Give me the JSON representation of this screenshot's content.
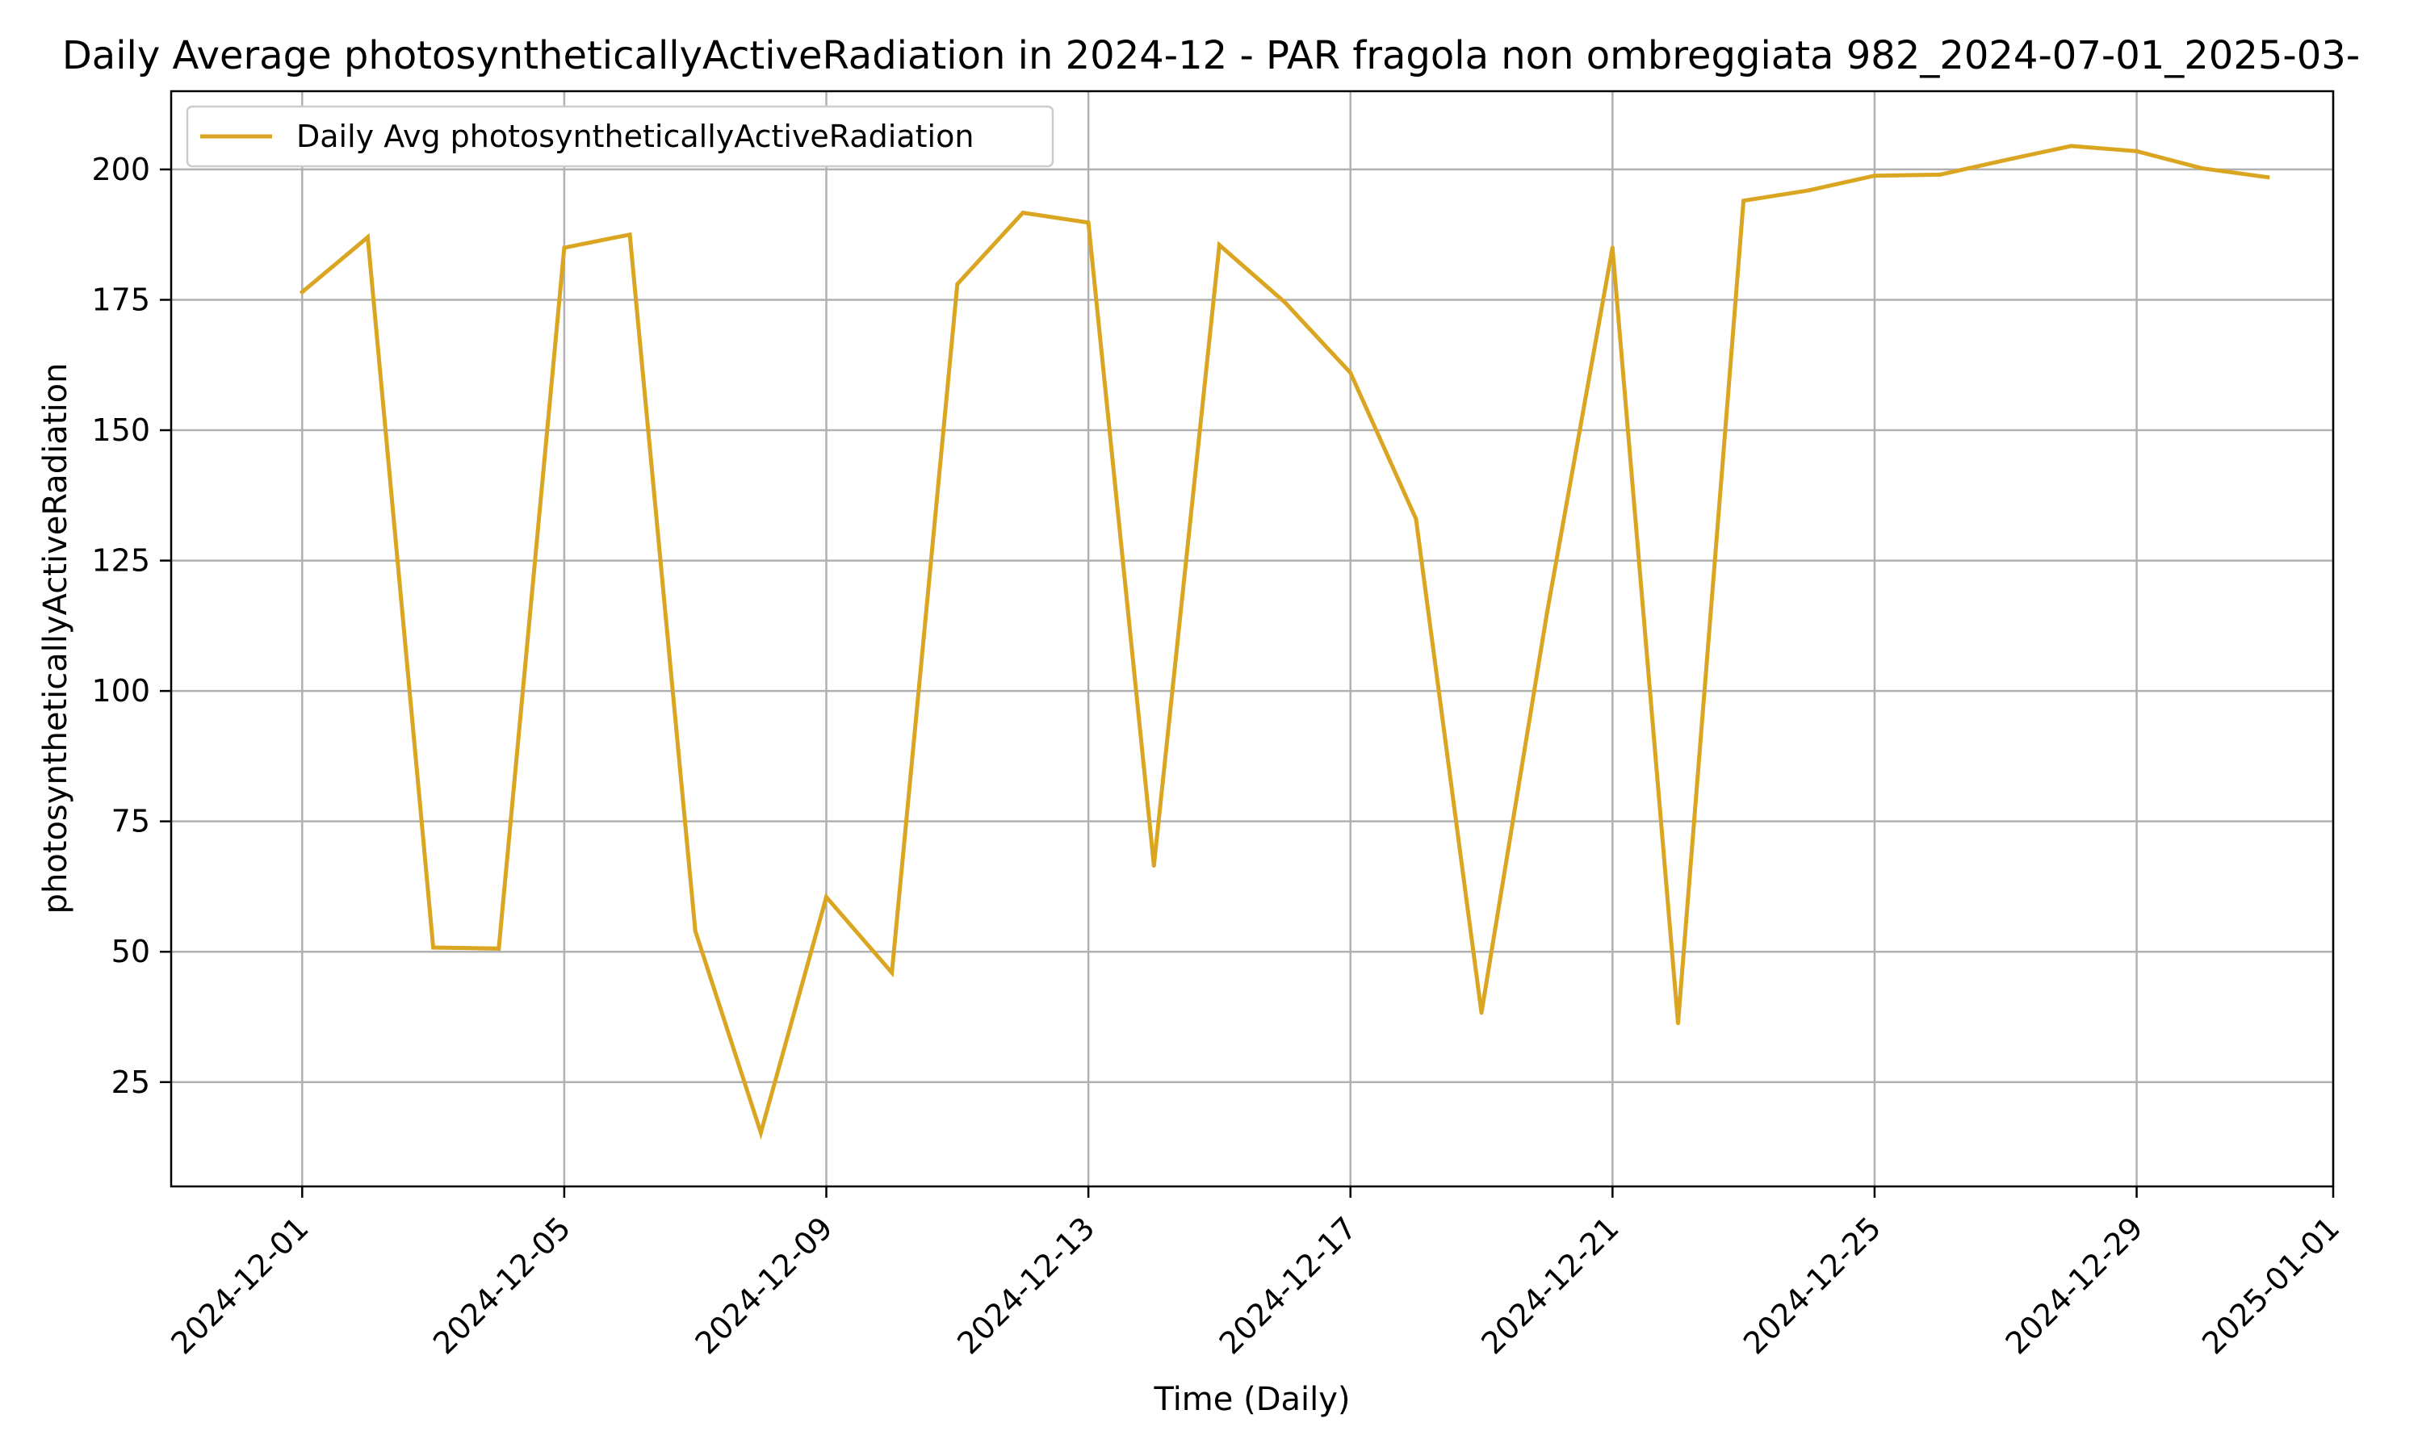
{
  "chart_data": {
    "type": "line",
    "title": "Daily Average photosyntheticallyActiveRadiation in 2024-12 - PAR fragola non ombreggiata 982_2024-07-01_2025-03-",
    "xlabel": "Time (Daily)",
    "ylabel": "photosyntheticallyActiveRadiation",
    "x_range": [
      "2024-11-29",
      "2025-01-01"
    ],
    "ylim": [
      5,
      215
    ],
    "grid": true,
    "legend": {
      "placement": "top-left"
    },
    "x_ticks": [
      "2024-12-01",
      "2024-12-05",
      "2024-12-09",
      "2024-12-13",
      "2024-12-17",
      "2024-12-21",
      "2024-12-25",
      "2024-12-29",
      "2025-01-01"
    ],
    "y_ticks": [
      25,
      50,
      75,
      100,
      125,
      150,
      175,
      200
    ],
    "series": [
      {
        "name": "Daily Avg photosyntheticallyActiveRadiation",
        "color": "#DAA520",
        "x": [
          "2024-12-01",
          "2024-12-02",
          "2024-12-03",
          "2024-12-04",
          "2024-12-05",
          "2024-12-06",
          "2024-12-07",
          "2024-12-08",
          "2024-12-09",
          "2024-12-10",
          "2024-12-11",
          "2024-12-12",
          "2024-12-13",
          "2024-12-14",
          "2024-12-15",
          "2024-12-16",
          "2024-12-17",
          "2024-12-18",
          "2024-12-19",
          "2024-12-20",
          "2024-12-21",
          "2024-12-22",
          "2024-12-23",
          "2024-12-24",
          "2024-12-25",
          "2024-12-26",
          "2024-12-27",
          "2024-12-28",
          "2024-12-29",
          "2024-12-30",
          "2024-12-31"
        ],
        "values": [
          176.5,
          187,
          50.8,
          50.6,
          185,
          187.5,
          54,
          15.3,
          60.5,
          46,
          178,
          191.7,
          189.8,
          66.5,
          185.5,
          174.5,
          161,
          133,
          38.3,
          115,
          185,
          36.3,
          194,
          196,
          198.8,
          199,
          201.8,
          204.5,
          203.5,
          200.2,
          198.5
        ]
      }
    ]
  }
}
